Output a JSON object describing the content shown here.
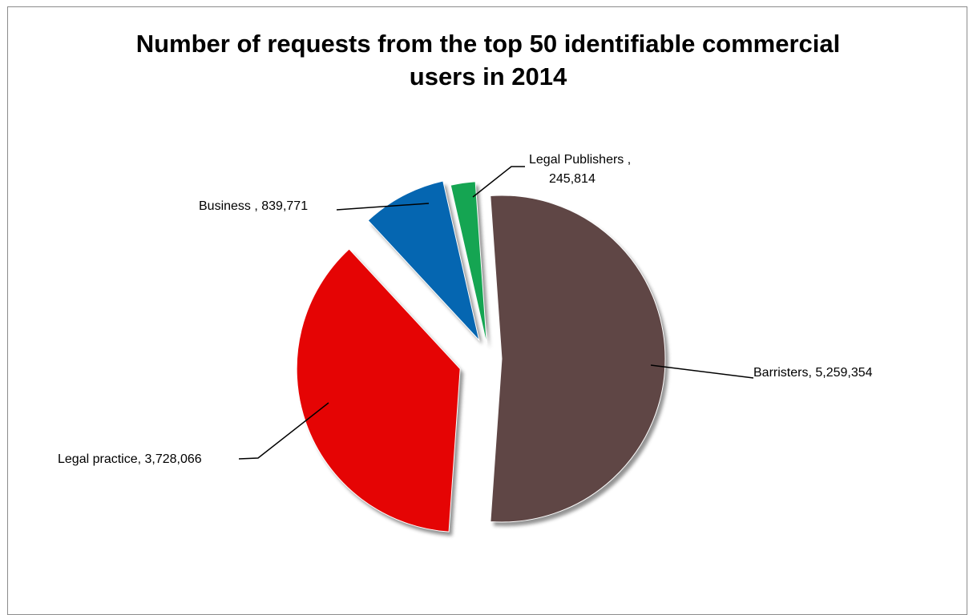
{
  "chart_data": {
    "type": "pie",
    "title_lines": [
      "Number of requests from the top 50 identifiable commercial",
      "users in 2014"
    ],
    "slices": [
      {
        "category": "Barristers",
        "value": 5259354,
        "color": "#5f4645",
        "label_lines": [
          "Barristers,  5,259,354"
        ]
      },
      {
        "category": "Legal practice",
        "value": 3728066,
        "color": "#e50404",
        "label_lines": [
          "Legal practice,  3,728,066"
        ]
      },
      {
        "category": "Business",
        "value": 839771,
        "color": "#0566b1",
        "label_lines": [
          "Business ,  839,771"
        ]
      },
      {
        "category": "Legal Publishers",
        "value": 245814,
        "color": "#15a552",
        "label_lines": [
          "Legal Publishers ,",
          "245,814"
        ]
      }
    ],
    "legend": "none",
    "exploded": true
  }
}
